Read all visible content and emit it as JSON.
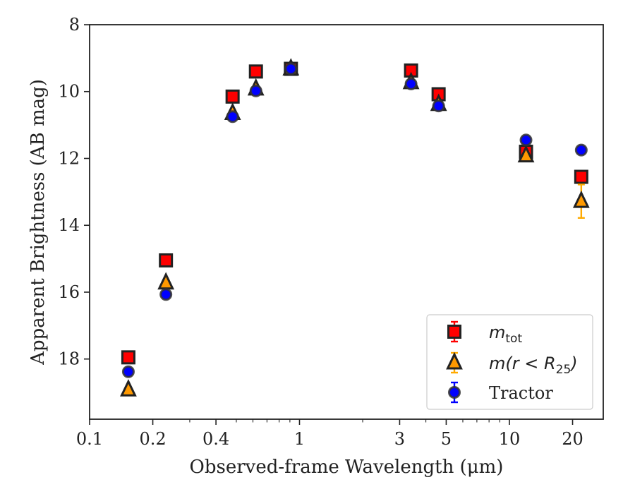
{
  "chart_data": {
    "type": "scatter",
    "title": "",
    "xlabel": "Observed-frame Wavelength (μm)",
    "ylabel": "Apparent Brightness (AB mag)",
    "xscale": "log",
    "xlim": [
      0.1,
      28
    ],
    "ylim": [
      19.8,
      8
    ],
    "y_inverted": true,
    "xticks": [
      0.1,
      0.2,
      0.4,
      1,
      3,
      5,
      10,
      20
    ],
    "xtick_labels": [
      "0.1",
      "0.2",
      "0.4",
      "1",
      "3",
      "5",
      "10",
      "20"
    ],
    "yticks": [
      8,
      10,
      12,
      14,
      16,
      18
    ],
    "ytick_labels": [
      "8",
      "10",
      "12",
      "14",
      "16",
      "18"
    ],
    "grid": false,
    "legend": "lower right",
    "series": [
      {
        "name": "m_tot",
        "legend_label": {
          "main": "m",
          "sub": "tot"
        },
        "marker": "square",
        "color": "#ff0000",
        "edge_color": "#222222",
        "errorbar_color": "#ff0000",
        "points": [
          {
            "x": 0.153,
            "y": 17.95,
            "err": 0.05
          },
          {
            "x": 0.231,
            "y": 15.05,
            "err": 0.05
          },
          {
            "x": 0.48,
            "y": 10.15,
            "err": 0.05
          },
          {
            "x": 0.62,
            "y": 9.4,
            "err": 0.05
          },
          {
            "x": 0.91,
            "y": 9.32,
            "err": 0.05
          },
          {
            "x": 3.4,
            "y": 9.37,
            "err": 0.05
          },
          {
            "x": 4.6,
            "y": 10.08,
            "err": 0.05
          },
          {
            "x": 12.0,
            "y": 11.8,
            "err": 0.05
          },
          {
            "x": 22.0,
            "y": 12.55,
            "err": 0.05
          }
        ]
      },
      {
        "name": "m(r < R_25)",
        "legend_label": {
          "main": "m(r < R",
          "sub": "25",
          "tail": ")"
        },
        "marker": "triangle",
        "color": "#ff9900",
        "edge_color": "#222222",
        "errorbar_color": "#ffaa00",
        "points": [
          {
            "x": 0.153,
            "y": 18.92,
            "err": 0.05
          },
          {
            "x": 0.231,
            "y": 15.72,
            "err": 0.05
          },
          {
            "x": 0.48,
            "y": 10.65,
            "err": 0.05
          },
          {
            "x": 0.62,
            "y": 9.92,
            "err": 0.05
          },
          {
            "x": 0.91,
            "y": 9.32,
            "err": 0.05
          },
          {
            "x": 3.4,
            "y": 9.73,
            "err": 0.05
          },
          {
            "x": 4.6,
            "y": 10.38,
            "err": 0.05
          },
          {
            "x": 12.0,
            "y": 11.92,
            "err": 0.1
          },
          {
            "x": 22.0,
            "y": 13.28,
            "err": 0.5
          }
        ]
      },
      {
        "name": "Tractor",
        "legend_label": {
          "main": "Tractor"
        },
        "marker": "circle",
        "color": "#0000ff",
        "edge_color": "#333333",
        "errorbar_color": "#0000ff",
        "points": [
          {
            "x": 0.153,
            "y": 18.38,
            "err": 0.05
          },
          {
            "x": 0.231,
            "y": 16.07,
            "err": 0.05
          },
          {
            "x": 0.48,
            "y": 10.75,
            "err": 0.05
          },
          {
            "x": 0.62,
            "y": 9.98,
            "err": 0.05
          },
          {
            "x": 0.91,
            "y": 9.32,
            "err": 0.05
          },
          {
            "x": 3.4,
            "y": 9.77,
            "err": 0.05
          },
          {
            "x": 4.6,
            "y": 10.43,
            "err": 0.05
          },
          {
            "x": 12.0,
            "y": 11.45,
            "err": 0.05
          },
          {
            "x": 22.0,
            "y": 11.75,
            "err": 0.05
          }
        ]
      }
    ]
  }
}
